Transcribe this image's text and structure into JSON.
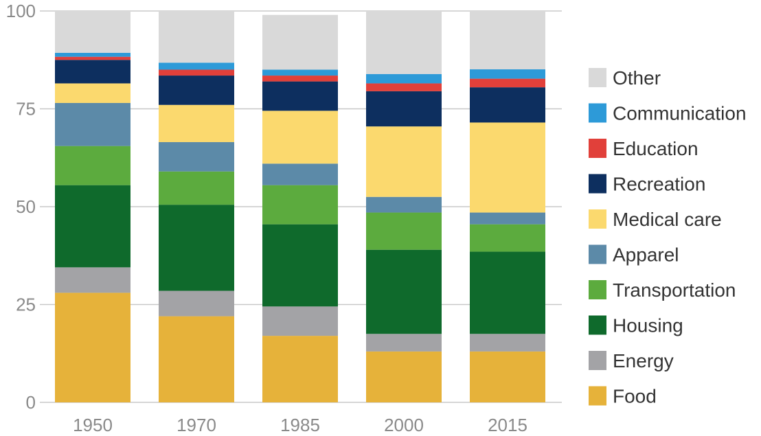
{
  "chart_data": {
    "type": "bar",
    "stacked": true,
    "categories": [
      "1950",
      "1970",
      "1985",
      "2000",
      "2015"
    ],
    "ylim": [
      0,
      100
    ],
    "yticks": [
      0,
      25,
      50,
      75,
      100
    ],
    "grid": true,
    "legend_position": "right",
    "series": [
      {
        "name": "Food",
        "color": "#e6b23a",
        "values": [
          28,
          22,
          17,
          13,
          13
        ]
      },
      {
        "name": "Energy",
        "color": "#a3a3a6",
        "values": [
          6.5,
          6.5,
          7.5,
          4.5,
          4.5
        ]
      },
      {
        "name": "Housing",
        "color": "#0f6a2c",
        "values": [
          21,
          22,
          21,
          21.5,
          21
        ]
      },
      {
        "name": "Transportation",
        "color": "#5cab3e",
        "values": [
          10,
          8.5,
          10,
          9.5,
          7
        ]
      },
      {
        "name": "Apparel",
        "color": "#5c8aa8",
        "values": [
          11,
          7.5,
          5.5,
          4,
          3
        ]
      },
      {
        "name": "Medical care",
        "color": "#fbd96e",
        "values": [
          5,
          9.5,
          13.5,
          18,
          23
        ]
      },
      {
        "name": "Recreation",
        "color": "#0d2f5f",
        "values": [
          6,
          7.5,
          7.5,
          9,
          9
        ]
      },
      {
        "name": "Education",
        "color": "#e1403a",
        "values": [
          0.8,
          1.5,
          1.5,
          2,
          2.2
        ]
      },
      {
        "name": "Communication",
        "color": "#2d9ad8",
        "values": [
          1,
          1.8,
          1.5,
          2.4,
          2.4
        ]
      },
      {
        "name": "Other",
        "color": "#d9d9d9",
        "values": [
          10.7,
          13.2,
          14,
          16.1,
          14.9
        ]
      }
    ]
  }
}
